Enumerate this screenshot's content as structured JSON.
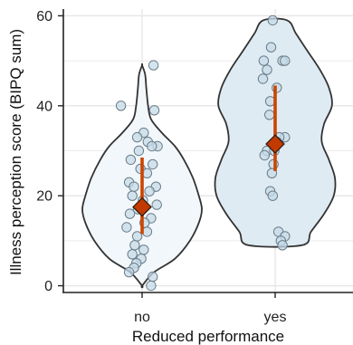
{
  "chart_data": {
    "type": "violin",
    "xlabel": "Reduced performance",
    "ylabel": "Illness perception score (BIPQ sum)",
    "categories": [
      "no",
      "yes"
    ],
    "ylim": [
      -1.5,
      61.5
    ],
    "yticks": [
      0,
      20,
      40,
      60
    ],
    "grid": true,
    "legend": "none",
    "colors": {
      "violin_fill": [
        "#f2f7fb",
        "#deebf3"
      ],
      "violin_stroke": "#333333",
      "point_fill": "#c6dbe8",
      "point_stroke": "#6b7d88",
      "summary": "#cc4400",
      "summary_marker": "#c23a00",
      "grid": "#e6e6e6"
    },
    "groups": [
      {
        "name": "no",
        "mean": 17.5,
        "ci": [
          11.5,
          28.5
        ],
        "violin_profile": [
          [
            0,
            0.0
          ],
          [
            3,
            0.2
          ],
          [
            6,
            0.55
          ],
          [
            10,
            0.8
          ],
          [
            14,
            0.95
          ],
          [
            17,
            1.0
          ],
          [
            20,
            0.95
          ],
          [
            24,
            0.85
          ],
          [
            28,
            0.7
          ],
          [
            31,
            0.55
          ],
          [
            34,
            0.33
          ],
          [
            37,
            0.15
          ],
          [
            40,
            0.1
          ],
          [
            44,
            0.07
          ],
          [
            47,
            0.05
          ],
          [
            49,
            0.0
          ]
        ],
        "points": [
          {
            "x": 0.14,
            "y": 49
          },
          {
            "x": -0.26,
            "y": 40
          },
          {
            "x": 0.15,
            "y": 39
          },
          {
            "x": 0.02,
            "y": 34
          },
          {
            "x": -0.06,
            "y": 33
          },
          {
            "x": 0.07,
            "y": 32
          },
          {
            "x": 0.19,
            "y": 31
          },
          {
            "x": 0.12,
            "y": 31
          },
          {
            "x": -0.04,
            "y": 30
          },
          {
            "x": -0.14,
            "y": 28
          },
          {
            "x": 0.13,
            "y": 27
          },
          {
            "x": -0.02,
            "y": 26
          },
          {
            "x": 0.06,
            "y": 25
          },
          {
            "x": -0.16,
            "y": 23
          },
          {
            "x": -0.1,
            "y": 22
          },
          {
            "x": 0.17,
            "y": 22
          },
          {
            "x": 0.09,
            "y": 21
          },
          {
            "x": -0.12,
            "y": 20
          },
          {
            "x": 0.01,
            "y": 19
          },
          {
            "x": 0.18,
            "y": 18
          },
          {
            "x": -0.05,
            "y": 17
          },
          {
            "x": -0.15,
            "y": 16
          },
          {
            "x": 0.11,
            "y": 15
          },
          {
            "x": 0.03,
            "y": 14
          },
          {
            "x": -0.19,
            "y": 13
          },
          {
            "x": 0.06,
            "y": 12
          },
          {
            "x": -0.06,
            "y": 11
          },
          {
            "x": -0.09,
            "y": 9
          },
          {
            "x": 0.02,
            "y": 8
          },
          {
            "x": -0.12,
            "y": 7
          },
          {
            "x": -0.01,
            "y": 6
          },
          {
            "x": -0.07,
            "y": 5
          },
          {
            "x": -0.1,
            "y": 4
          },
          {
            "x": -0.16,
            "y": 3
          },
          {
            "x": 0.13,
            "y": 2
          },
          {
            "x": 0.11,
            "y": 0
          }
        ]
      },
      {
        "name": "yes",
        "mean": 31.5,
        "ci": [
          25.5,
          44.5
        ],
        "violin_profile": [
          [
            9,
            0.45
          ],
          [
            12,
            0.6
          ],
          [
            16,
            0.82
          ],
          [
            20,
            0.98
          ],
          [
            24,
            1.0
          ],
          [
            28,
            0.9
          ],
          [
            32,
            0.78
          ],
          [
            36,
            0.82
          ],
          [
            40,
            0.95
          ],
          [
            44,
            0.9
          ],
          [
            48,
            0.75
          ],
          [
            52,
            0.55
          ],
          [
            56,
            0.35
          ],
          [
            59,
            0.2
          ]
        ],
        "points": [
          {
            "x": -0.03,
            "y": 59
          },
          {
            "x": -0.05,
            "y": 53
          },
          {
            "x": 0.09,
            "y": 50
          },
          {
            "x": 0.12,
            "y": 50
          },
          {
            "x": -0.14,
            "y": 50
          },
          {
            "x": -0.1,
            "y": 48
          },
          {
            "x": -0.15,
            "y": 46
          },
          {
            "x": 0.02,
            "y": 44
          },
          {
            "x": -0.06,
            "y": 41
          },
          {
            "x": -0.07,
            "y": 38
          },
          {
            "x": 0.12,
            "y": 33
          },
          {
            "x": 0.05,
            "y": 33
          },
          {
            "x": 0.02,
            "y": 32
          },
          {
            "x": -0.1,
            "y": 30
          },
          {
            "x": -0.01,
            "y": 30
          },
          {
            "x": -0.13,
            "y": 29
          },
          {
            "x": -0.02,
            "y": 27
          },
          {
            "x": -0.04,
            "y": 25
          },
          {
            "x": -0.06,
            "y": 21
          },
          {
            "x": -0.03,
            "y": 20
          },
          {
            "x": 0.04,
            "y": 12
          },
          {
            "x": 0.12,
            "y": 11
          },
          {
            "x": 0.07,
            "y": 10
          },
          {
            "x": 0.09,
            "y": 9
          }
        ]
      }
    ]
  }
}
